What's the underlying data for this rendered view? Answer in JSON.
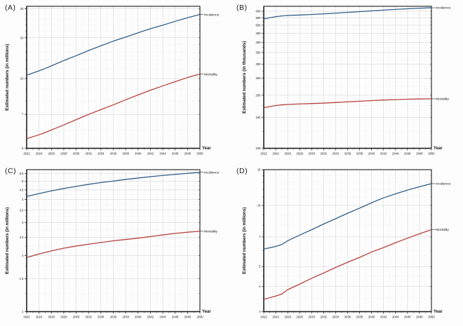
{
  "figure": {
    "background": "#fdfdfd"
  },
  "colors": {
    "incidence": "#336089",
    "mortality": "#b8423f",
    "grid_major": "#cfcfcf",
    "grid_minor": "#e3e3e3",
    "axis": "#1a1a1a",
    "text": "#111111",
    "leader": "#333333"
  },
  "chart_data": [
    {
      "id": "A",
      "panel_label": "(A)",
      "type": "line",
      "xlabel": "Year",
      "ylabel": "Estimated numbers (in millions)",
      "yscale": "log",
      "xlim": [
        2022,
        2050
      ],
      "ylim": [
        5,
        20.5
      ],
      "left_margin": 38,
      "x_ticks": [
        2022,
        2024,
        2026,
        2028,
        2030,
        2032,
        2034,
        2036,
        2038,
        2040,
        2042,
        2044,
        2046,
        2048,
        2050
      ],
      "y_ticks": [
        5,
        7,
        10,
        15,
        20
      ],
      "y_minor": [
        6,
        8,
        9,
        11,
        12,
        13,
        14,
        16,
        17,
        18,
        19
      ],
      "series": [
        {
          "name": "Incidence",
          "color_key": "incidence",
          "x": [
            2022,
            2024,
            2025,
            2026,
            2028,
            2030,
            2032,
            2034,
            2036,
            2038,
            2040,
            2042,
            2044,
            2046,
            2048,
            2050
          ],
          "values": [
            10.33,
            10.8,
            11.05,
            11.35,
            11.95,
            12.55,
            13.2,
            13.85,
            14.5,
            15.1,
            15.75,
            16.4,
            17.0,
            17.65,
            18.3,
            18.9
          ]
        },
        {
          "name": "Mortality",
          "color_key": "mortality",
          "x": [
            2022,
            2024,
            2025,
            2026,
            2028,
            2030,
            2032,
            2034,
            2036,
            2038,
            2040,
            2042,
            2044,
            2046,
            2048,
            2050
          ],
          "values": [
            5.5,
            5.72,
            5.85,
            6.0,
            6.3,
            6.65,
            7.0,
            7.35,
            7.7,
            8.1,
            8.5,
            8.9,
            9.3,
            9.7,
            10.1,
            10.45
          ]
        }
      ]
    },
    {
      "id": "B",
      "panel_label": "(B)",
      "type": "line",
      "xlabel": "Year",
      "ylabel": "Estimated numbers (in thousands)",
      "yscale": "log",
      "xlim": [
        2022,
        2050
      ],
      "ylim": [
        100,
        640
      ],
      "left_margin": 46,
      "x_ticks": [
        2022,
        2024,
        2026,
        2028,
        2030,
        2032,
        2034,
        2036,
        2038,
        2040,
        2042,
        2044,
        2046,
        2048,
        2050
      ],
      "y_ticks": [
        100,
        150,
        200,
        250,
        300,
        350,
        400,
        450,
        500,
        550,
        600
      ],
      "y_minor": [
        125,
        175,
        225,
        275,
        325,
        375,
        425,
        475,
        525,
        575
      ],
      "series": [
        {
          "name": "Incidence",
          "color_key": "incidence",
          "x": [
            2022,
            2024,
            2025,
            2026,
            2028,
            2030,
            2032,
            2034,
            2036,
            2038,
            2040,
            2042,
            2044,
            2046,
            2048,
            2050
          ],
          "values": [
            543,
            559,
            564,
            567,
            571,
            575,
            580,
            585,
            591,
            597,
            603,
            609,
            615,
            620,
            624,
            628
          ]
        },
        {
          "name": "Mortality",
          "color_key": "mortality",
          "x": [
            2022,
            2024,
            2025,
            2026,
            2028,
            2030,
            2032,
            2034,
            2036,
            2038,
            2040,
            2042,
            2044,
            2046,
            2048,
            2050
          ],
          "values": [
            170,
            175,
            176.5,
            177.5,
            178.5,
            179.5,
            180.5,
            182,
            183.5,
            185,
            186.5,
            188,
            189,
            190,
            190.5,
            191
          ]
        }
      ]
    },
    {
      "id": "C",
      "panel_label": "(C)",
      "type": "line",
      "xlabel": "Year",
      "ylabel": "Estimated numbers (in millions)",
      "yscale": "log",
      "xlim": [
        2022,
        2050
      ],
      "ylim": [
        1,
        5.78
      ],
      "left_margin": 38,
      "x_ticks": [
        2022,
        2024,
        2026,
        2028,
        2030,
        2032,
        2034,
        2036,
        2038,
        2040,
        2042,
        2044,
        2046,
        2048,
        2050
      ],
      "y_ticks": [
        1,
        1.5,
        2,
        2.5,
        3,
        3.5,
        4,
        4.5,
        5,
        5.5
      ],
      "y_minor": [
        1.25,
        1.75,
        2.25,
        2.75,
        3.25,
        3.75,
        4.25,
        4.75,
        5.25
      ],
      "series": [
        {
          "name": "Incidence",
          "color_key": "incidence",
          "x": [
            2022,
            2024,
            2026,
            2028,
            2030,
            2032,
            2034,
            2036,
            2038,
            2040,
            2042,
            2044,
            2046,
            2048,
            2050
          ],
          "values": [
            4.15,
            4.3,
            4.45,
            4.58,
            4.7,
            4.82,
            4.93,
            5.02,
            5.12,
            5.21,
            5.3,
            5.38,
            5.45,
            5.52,
            5.6
          ]
        },
        {
          "name": "Mortality",
          "color_key": "mortality",
          "x": [
            2022,
            2024,
            2026,
            2028,
            2030,
            2032,
            2034,
            2036,
            2038,
            2040,
            2042,
            2044,
            2046,
            2048,
            2050
          ],
          "values": [
            1.95,
            2.04,
            2.12,
            2.19,
            2.25,
            2.3,
            2.35,
            2.4,
            2.44,
            2.48,
            2.53,
            2.58,
            2.63,
            2.67,
            2.7
          ]
        }
      ]
    },
    {
      "id": "D",
      "panel_label": "(D)",
      "type": "line",
      "xlabel": "Year",
      "ylabel": "Estimated numbers (in millions)",
      "yscale": "log",
      "xlim": [
        2022,
        2050
      ],
      "ylim": [
        3,
        15
      ],
      "left_margin": 46,
      "x_ticks": [
        2022,
        2024,
        2026,
        2028,
        2030,
        2032,
        2034,
        2036,
        2038,
        2040,
        2042,
        2044,
        2046,
        2048,
        2050
      ],
      "y_ticks": [
        3,
        4,
        5,
        7,
        10,
        15
      ],
      "y_minor": [
        3.5,
        4.5,
        6,
        8,
        9,
        11,
        12,
        13,
        14
      ],
      "series": [
        {
          "name": "Incidence",
          "color_key": "incidence",
          "x": [
            2022,
            2024,
            2025,
            2026,
            2028,
            2030,
            2032,
            2034,
            2036,
            2038,
            2040,
            2042,
            2044,
            2046,
            2048,
            2050
          ],
          "values": [
            6.1,
            6.28,
            6.42,
            6.7,
            7.15,
            7.6,
            8.1,
            8.6,
            9.15,
            9.7,
            10.3,
            10.9,
            11.4,
            11.9,
            12.35,
            12.8
          ]
        },
        {
          "name": "Mortality",
          "color_key": "mortality",
          "x": [
            2022,
            2024,
            2025,
            2026,
            2028,
            2030,
            2032,
            2034,
            2036,
            2038,
            2040,
            2042,
            2044,
            2046,
            2048,
            2050
          ],
          "values": [
            3.45,
            3.58,
            3.66,
            3.85,
            4.1,
            4.38,
            4.65,
            4.95,
            5.25,
            5.55,
            5.9,
            6.2,
            6.55,
            6.9,
            7.25,
            7.6
          ]
        }
      ]
    }
  ]
}
